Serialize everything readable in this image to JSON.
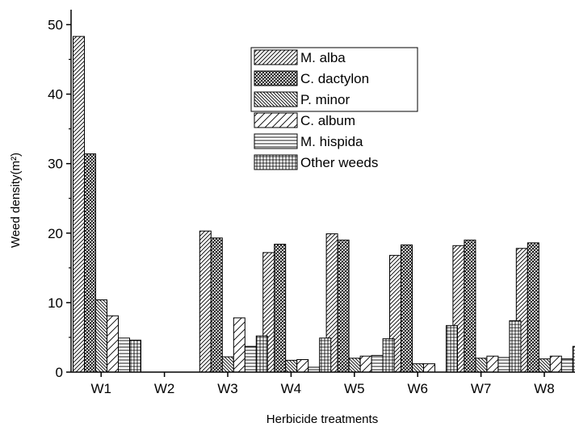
{
  "chart_data": {
    "type": "bar",
    "xlabel": "Herbicide treatments",
    "ylabel": "Weed density(m²)",
    "ylim": [
      0,
      50
    ],
    "yticks": [
      0,
      10,
      20,
      30,
      40,
      50
    ],
    "categories": [
      "W1",
      "W2",
      "W3",
      "W4",
      "W5",
      "W6",
      "W7",
      "W8"
    ],
    "legend_position": "top-center",
    "grid": false,
    "series": [
      {
        "name": "M. alba",
        "pattern": "diag-up",
        "values": [
          48.3,
          0,
          20.3,
          17.2,
          19.9,
          16.8,
          18.2,
          17.8
        ]
      },
      {
        "name": "C. dactylon",
        "pattern": "crosshatch",
        "values": [
          31.4,
          0,
          19.3,
          18.4,
          19.0,
          18.3,
          19.0,
          18.6
        ]
      },
      {
        "name": "P. minor",
        "pattern": "diag-down-dense",
        "values": [
          10.4,
          0,
          2.2,
          1.7,
          2.0,
          1.2,
          2.0,
          1.9
        ]
      },
      {
        "name": "C. album",
        "pattern": "diag-up-sparse",
        "values": [
          8.1,
          0,
          7.8,
          1.8,
          2.3,
          1.2,
          2.3,
          2.3
        ]
      },
      {
        "name": "M. hispida",
        "pattern": "horizontal",
        "values": [
          4.9,
          0,
          3.7,
          0.7,
          2.4,
          0.0,
          2.1,
          1.9
        ]
      },
      {
        "name": "Other weeds",
        "pattern": "grid",
        "values": [
          4.6,
          0,
          5.2,
          4.9,
          4.8,
          6.7,
          7.4,
          3.7
        ]
      }
    ]
  }
}
